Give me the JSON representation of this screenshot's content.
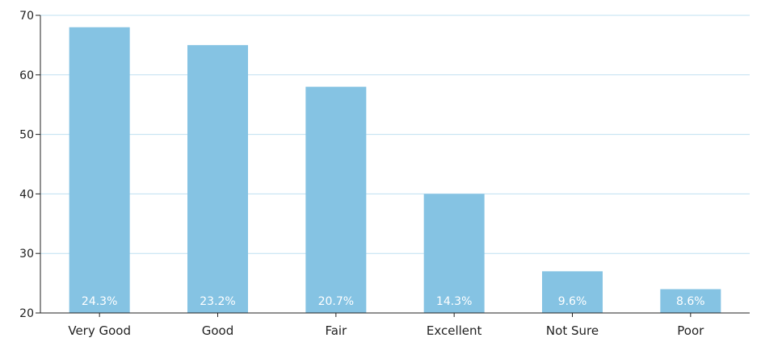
{
  "chart_data": {
    "type": "bar",
    "categories": [
      "Very Good",
      "Good",
      "Fair",
      "Excellent",
      "Not Sure",
      "Poor"
    ],
    "values": [
      68,
      65,
      58,
      40,
      27,
      24
    ],
    "data_labels": [
      "24.3%",
      "23.2%",
      "20.7%",
      "14.3%",
      "9.6%",
      "8.6%"
    ],
    "yticks": [
      "20",
      "30",
      "40",
      "50",
      "60",
      "70"
    ],
    "ylim": [
      20,
      70
    ],
    "grid": true,
    "legend": "none",
    "title": "",
    "xlabel": "",
    "ylabel": "",
    "colors": {
      "bar": "#85c3e3",
      "axis": "#222222",
      "grid": "#bfe0f1"
    }
  }
}
